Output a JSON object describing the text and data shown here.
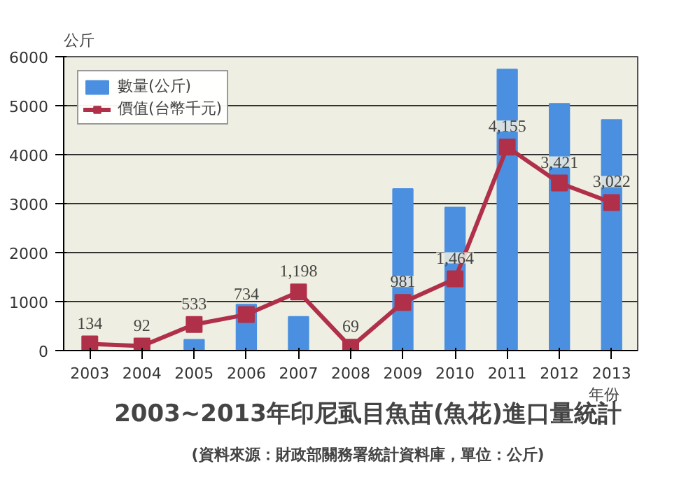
{
  "chart_data": {
    "type": "bar",
    "title": "2003~2013年印尼虱目魚苗(魚花)進口量統計",
    "ylabel": "公斤",
    "xlabel": "年份",
    "annotations": [
      "(資料來源：財政部關務署統計資料庫，單位：公斤)"
    ],
    "categories": [
      "2003",
      "2004",
      "2005",
      "2006",
      "2007",
      "2008",
      "2009",
      "2010",
      "2011",
      "2012",
      "2013"
    ],
    "series": [
      {
        "name": "數量(公斤)",
        "color": "#4a8fe0",
        "values": [
          null,
          null,
          220,
          940,
          690,
          null,
          3300,
          2920,
          5740,
          5040,
          4710
        ]
      },
      {
        "name": "價值(台幣千元)",
        "type": "line",
        "color": "#b0304a",
        "marker": "square",
        "values": [
          134,
          92,
          533,
          734,
          1198,
          69,
          981,
          1464,
          4155,
          3421,
          3022
        ],
        "value_labels": [
          "134",
          "92",
          "533",
          "734",
          "1,198",
          "69",
          "981",
          "1,464",
          "4,155",
          "3,421",
          "3,022"
        ]
      }
    ],
    "ylim": [
      0,
      6000
    ],
    "yticks": [
      0,
      1000,
      2000,
      3000,
      4000,
      5000,
      6000
    ],
    "grid": "y",
    "legend": "top left"
  }
}
